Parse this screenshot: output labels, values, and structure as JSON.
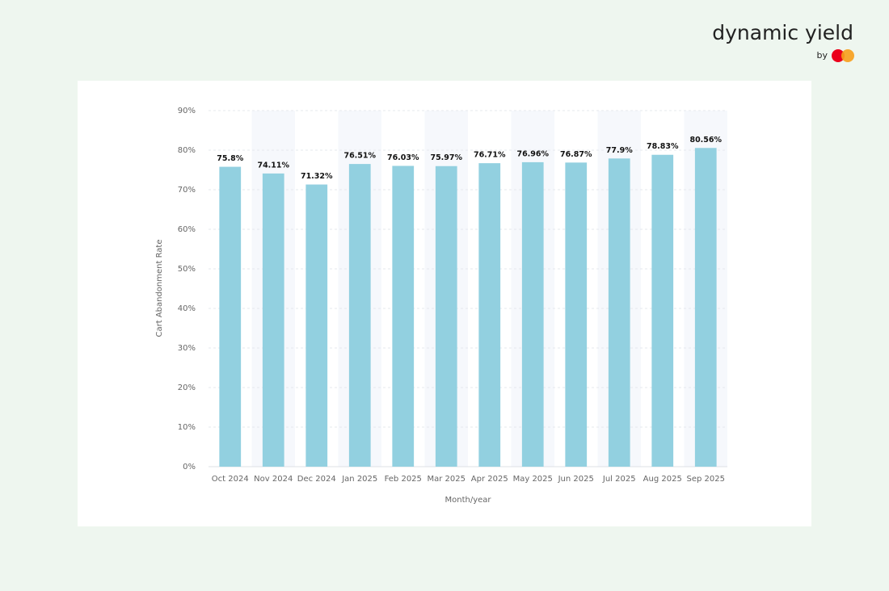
{
  "brand": {
    "name": "dynamic yield",
    "by": "by"
  },
  "chart_data": {
    "type": "bar",
    "y_label": "Cart Abandonment Rate",
    "x_label": "Month/year",
    "categories": [
      "Oct 2024",
      "Nov 2024",
      "Dec 2024",
      "Jan 2025",
      "Feb 2025",
      "Mar 2025",
      "Apr 2025",
      "May 2025",
      "Jun 2025",
      "Jul 2025",
      "Aug 2025",
      "Sep 2025"
    ],
    "values": [
      75.8,
      74.11,
      71.32,
      76.51,
      76.03,
      75.97,
      76.71,
      76.96,
      76.87,
      77.9,
      78.83,
      80.56
    ],
    "value_labels": [
      "75.8%",
      "74.11%",
      "71.32%",
      "76.51%",
      "76.03%",
      "75.97%",
      "76.71%",
      "76.96%",
      "76.87%",
      "77.9%",
      "78.83%",
      "80.56%"
    ],
    "color": "#92d0e0",
    "ylim": [
      0,
      90
    ],
    "yticks": [
      {
        "value": 0,
        "label": "0%"
      },
      {
        "value": 10,
        "label": "10%"
      },
      {
        "value": 20,
        "label": "20%"
      },
      {
        "value": 30,
        "label": "30%"
      },
      {
        "value": 40,
        "label": "40%"
      },
      {
        "value": 50,
        "label": "50%"
      },
      {
        "value": 60,
        "label": "60%"
      },
      {
        "value": 70,
        "label": "70%"
      },
      {
        "value": 80,
        "label": "80%"
      },
      {
        "value": 90,
        "label": "90%"
      }
    ],
    "grid": true
  }
}
